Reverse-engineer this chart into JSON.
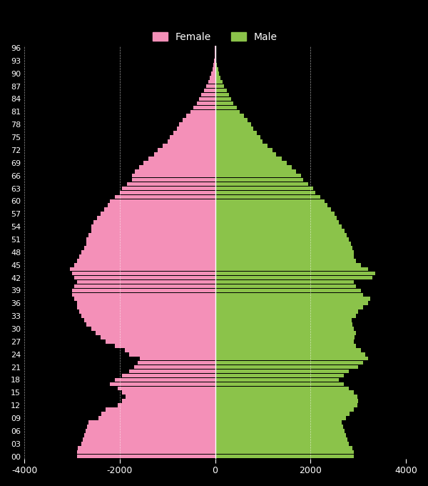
{
  "age_labels_shown": [
    "00",
    "03",
    "06",
    "09",
    "12",
    "15",
    "18",
    "21",
    "24",
    "27",
    "30",
    "33",
    "36",
    "39",
    "42",
    "45",
    "48",
    "51",
    "54",
    "57",
    "60",
    "63",
    "66",
    "69",
    "72",
    "75",
    "78",
    "81",
    "84",
    "87",
    "90",
    "93",
    "96"
  ],
  "female_color": "#f490b8",
  "male_color": "#8bc34a",
  "bg_color": "#000000",
  "text_color": "#ffffff",
  "grid_color": "#ffffff",
  "xlim": [
    -4000,
    4000
  ],
  "xticks": [
    -4000,
    -2000,
    0,
    2000,
    4000
  ],
  "legend_female": "Female",
  "legend_male": "Male",
  "female_by_year": [
    -2900,
    -2900,
    -2880,
    -2800,
    -2780,
    -2750,
    -2720,
    -2690,
    -2650,
    -2450,
    -2380,
    -2300,
    -2050,
    -1950,
    -1880,
    -1950,
    -2050,
    -2200,
    -2100,
    -1950,
    -1800,
    -1700,
    -1620,
    -1580,
    -1800,
    -1900,
    -2100,
    -2300,
    -2400,
    -2500,
    -2600,
    -2700,
    -2750,
    -2800,
    -2850,
    -2900,
    -2900,
    -2950,
    -3000,
    -3000,
    -2950,
    -2900,
    -2950,
    -3000,
    -3050,
    -2950,
    -2900,
    -2850,
    -2800,
    -2750,
    -2700,
    -2700,
    -2650,
    -2600,
    -2600,
    -2550,
    -2480,
    -2400,
    -2330,
    -2250,
    -2200,
    -2100,
    -2000,
    -1950,
    -1850,
    -1750,
    -1750,
    -1680,
    -1600,
    -1500,
    -1400,
    -1280,
    -1200,
    -1100,
    -1000,
    -950,
    -880,
    -800,
    -750,
    -680,
    -600,
    -520,
    -450,
    -380,
    -340,
    -290,
    -240,
    -190,
    -150,
    -110,
    -80,
    -60,
    -40,
    -25,
    -15,
    -8,
    -4
  ],
  "male_by_year": [
    2900,
    2900,
    2880,
    2800,
    2780,
    2750,
    2720,
    2690,
    2650,
    2750,
    2820,
    2900,
    2980,
    3000,
    2980,
    2900,
    2800,
    2700,
    2600,
    2700,
    2800,
    3000,
    3100,
    3200,
    3150,
    3050,
    2950,
    2900,
    2920,
    2950,
    2900,
    2880,
    2860,
    2950,
    3000,
    3100,
    3200,
    3250,
    3100,
    3050,
    2950,
    2900,
    3300,
    3350,
    3200,
    3050,
    2950,
    2900,
    2900,
    2880,
    2850,
    2800,
    2760,
    2720,
    2650,
    2600,
    2550,
    2500,
    2430,
    2350,
    2300,
    2200,
    2100,
    2050,
    1950,
    1850,
    1800,
    1700,
    1600,
    1500,
    1400,
    1280,
    1200,
    1100,
    1000,
    950,
    880,
    800,
    750,
    680,
    600,
    520,
    450,
    380,
    340,
    290,
    240,
    190,
    150,
    110,
    80,
    60,
    40,
    25,
    15,
    8,
    4
  ]
}
